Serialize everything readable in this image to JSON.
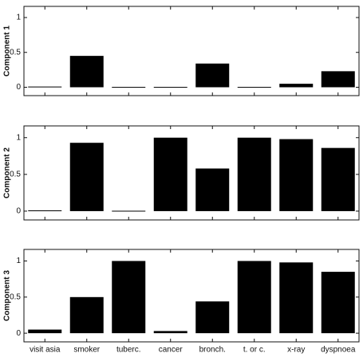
{
  "chart_data": [
    {
      "type": "bar",
      "ylabel": "Component 1",
      "color": "#000000",
      "values": [
        0.01,
        0.45,
        0.005,
        0.005,
        0.34,
        0.005,
        0.05,
        0.23
      ],
      "ylim": [
        -0.12,
        1.16
      ],
      "yticks": [
        0,
        0.5,
        1
      ]
    },
    {
      "type": "bar",
      "ylabel": "Component 2",
      "color": "#000000",
      "values": [
        0.01,
        0.93,
        0.005,
        1.0,
        0.58,
        1.0,
        0.98,
        0.86
      ],
      "ylim": [
        -0.12,
        1.16
      ],
      "yticks": [
        0,
        0.5,
        1
      ]
    },
    {
      "type": "bar",
      "ylabel": "Component 3",
      "color": "#000000",
      "categories": [
        "visit asia",
        "smoker",
        "tuberc.",
        "cancer",
        "bronch.",
        "t. or c.",
        "x-ray",
        "dyspnoea"
      ],
      "values": [
        0.05,
        0.5,
        1.0,
        0.03,
        0.44,
        1.0,
        0.98,
        0.85
      ],
      "ylim": [
        -0.12,
        1.16
      ],
      "yticks": [
        0,
        0.5,
        1
      ]
    }
  ]
}
